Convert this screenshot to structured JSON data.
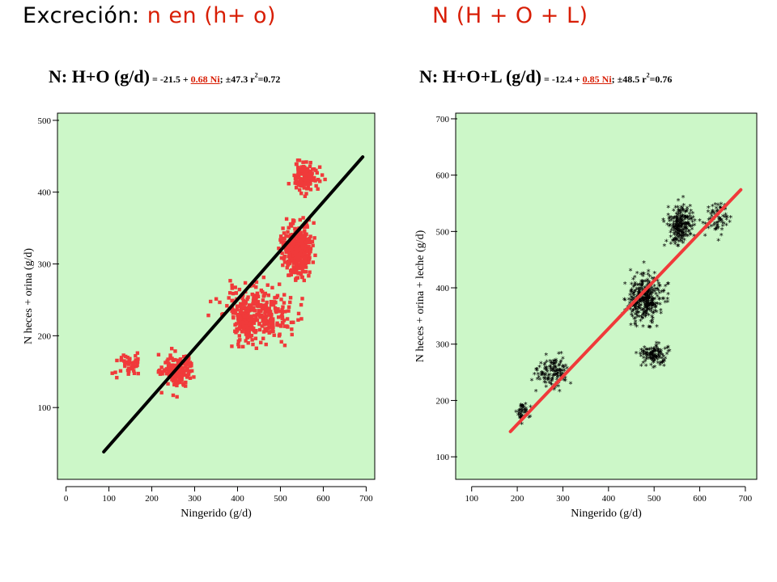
{
  "header": {
    "left_prefix": "Excreción: ",
    "left_red": "n en (h+ o)",
    "right": "N (H + O + L)"
  },
  "equations": {
    "left": {
      "main": "N: H+O (g/d)",
      "pre": " = -21.5 + ",
      "slope": "0.68 Ni",
      "post": "; ±47.3 r",
      "exp": "2",
      "r2": "=0.72"
    },
    "right": {
      "main": "N: H+O+L (g/d)",
      "pre": " = -12.4 + ",
      "slope": "0.85 Ni",
      "post": "; ±48.5 r",
      "exp": "2",
      "r2": "=0.76"
    }
  },
  "colors": {
    "plot_bg": "#ccf7c8",
    "red": "#f03a3a",
    "black": "#000000",
    "header_red": "#d81e05"
  },
  "chart_data": [
    {
      "type": "scatter",
      "xlabel": "Ningerido (g/d)",
      "ylabel": "N heces + orina (g/d)",
      "xlim": [
        -20,
        720
      ],
      "ylim": [
        0,
        510
      ],
      "xticks": [
        0,
        100,
        200,
        300,
        400,
        500,
        600,
        700
      ],
      "yticks": [
        100,
        200,
        300,
        400,
        500
      ],
      "marker": "square",
      "point_color": "#f03a3a",
      "line_color": "#000000",
      "regression": {
        "intercept": -21.5,
        "slope": 0.68,
        "x_range": [
          88,
          692
        ]
      },
      "clusters": [
        {
          "x": 450,
          "y": 230,
          "sx": 110,
          "sy": 55,
          "n": 260
        },
        {
          "x": 540,
          "y": 320,
          "sx": 45,
          "sy": 45,
          "n": 420
        },
        {
          "x": 560,
          "y": 420,
          "sx": 45,
          "sy": 25,
          "n": 130
        },
        {
          "x": 260,
          "y": 150,
          "sx": 50,
          "sy": 30,
          "n": 160
        },
        {
          "x": 150,
          "y": 160,
          "sx": 40,
          "sy": 20,
          "n": 50
        },
        {
          "x": 420,
          "y": 220,
          "sx": 30,
          "sy": 40,
          "n": 120
        }
      ],
      "seed": 11
    },
    {
      "type": "scatter",
      "xlabel": "Ningerido (g/d)",
      "ylabel": "N heces + orina + leche (g/d)",
      "xlim": [
        65,
        725
      ],
      "ylim": [
        60,
        710
      ],
      "xticks": [
        100,
        200,
        300,
        400,
        500,
        600,
        700
      ],
      "yticks": [
        100,
        200,
        300,
        400,
        500,
        600,
        700
      ],
      "marker": "asterisk",
      "point_color": "#000000",
      "line_color": "#f03a3a",
      "regression": {
        "intercept": -12.4,
        "slope": 0.85,
        "x_range": [
          185,
          690
        ]
      },
      "clusters": [
        {
          "x": 480,
          "y": 380,
          "sx": 55,
          "sy": 60,
          "n": 350
        },
        {
          "x": 560,
          "y": 510,
          "sx": 40,
          "sy": 50,
          "n": 220
        },
        {
          "x": 500,
          "y": 280,
          "sx": 40,
          "sy": 25,
          "n": 120
        },
        {
          "x": 280,
          "y": 250,
          "sx": 50,
          "sy": 35,
          "n": 130
        },
        {
          "x": 210,
          "y": 180,
          "sx": 25,
          "sy": 20,
          "n": 40
        },
        {
          "x": 640,
          "y": 520,
          "sx": 40,
          "sy": 40,
          "n": 70
        }
      ],
      "seed": 23
    }
  ]
}
